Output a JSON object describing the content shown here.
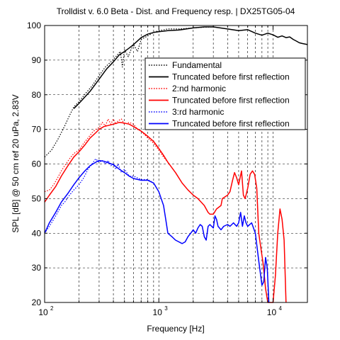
{
  "chart_data": {
    "type": "line",
    "title": "Trolldist v. 6.0 Beta - Dist. and Frequency resp. | DX25TG05-04",
    "xlabel": "Frequency [Hz]",
    "ylabel": "SPL [dB] @ 50 cm ref 20 uPa, 2.83V",
    "xscale": "log",
    "xlim": [
      100,
      20000
    ],
    "ylim": [
      20,
      100
    ],
    "xticks": [
      {
        "base": "10",
        "exp": "2"
      },
      {
        "base": "10",
        "exp": "3"
      },
      {
        "base": "10",
        "exp": "4"
      }
    ],
    "yticks": [
      "20",
      "30",
      "40",
      "50",
      "60",
      "70",
      "80",
      "90",
      "100"
    ],
    "grid": "dashed, vertical at 1-2-3...9 decades, horizontal at 10 dB",
    "legend_position": "top-right",
    "series": [
      {
        "name": "Fundamental",
        "color": "#000000",
        "style": "dotted",
        "points": [
          [
            100,
            62
          ],
          [
            115,
            64
          ],
          [
            130,
            67
          ],
          [
            150,
            71
          ],
          [
            165,
            74
          ],
          [
            180,
            76.5
          ],
          [
            200,
            78
          ],
          [
            230,
            80.5
          ],
          [
            260,
            82.5
          ],
          [
            300,
            85.5
          ],
          [
            340,
            88
          ],
          [
            380,
            89.5
          ],
          [
            420,
            91
          ],
          [
            460,
            92.5
          ],
          [
            480,
            88
          ],
          [
            500,
            93
          ],
          [
            540,
            91
          ],
          [
            570,
            93
          ],
          [
            600,
            94.5
          ],
          [
            650,
            92.5
          ],
          [
            700,
            96
          ],
          [
            800,
            97
          ],
          [
            900,
            98
          ],
          [
            1000,
            98.5
          ],
          [
            1200,
            99
          ],
          [
            1500,
            99
          ],
          [
            2000,
            99.3
          ],
          [
            2500,
            99.5
          ],
          [
            3000,
            99.6
          ]
        ]
      },
      {
        "name": "Truncated before first reflection",
        "color": "#000000",
        "style": "solid",
        "points": [
          [
            180,
            76
          ],
          [
            200,
            77.5
          ],
          [
            250,
            81
          ],
          [
            300,
            84.5
          ],
          [
            350,
            87.5
          ],
          [
            400,
            89.5
          ],
          [
            450,
            91.5
          ],
          [
            500,
            92.5
          ],
          [
            550,
            93.5
          ],
          [
            600,
            94.5
          ],
          [
            700,
            96.5
          ],
          [
            800,
            97.5
          ],
          [
            900,
            98
          ],
          [
            1000,
            98.2
          ],
          [
            1200,
            98.5
          ],
          [
            1500,
            98.7
          ],
          [
            2000,
            99.3
          ],
          [
            2500,
            99.6
          ],
          [
            3000,
            99.6
          ],
          [
            4000,
            99
          ],
          [
            5000,
            98.5
          ],
          [
            6000,
            98.8
          ],
          [
            7000,
            97.8
          ],
          [
            8000,
            97.2
          ],
          [
            9000,
            97.8
          ],
          [
            10000,
            97.3
          ],
          [
            11000,
            96.6
          ],
          [
            12000,
            97
          ],
          [
            13000,
            96.5
          ],
          [
            14000,
            96.7
          ],
          [
            15000,
            96
          ],
          [
            16000,
            95.5
          ],
          [
            17000,
            95
          ],
          [
            18000,
            94.8
          ],
          [
            20000,
            94.5
          ]
        ]
      },
      {
        "name": "2:nd harmonic",
        "color": "#ff0000",
        "style": "dotted",
        "points": [
          [
            100,
            52
          ],
          [
            110,
            52.5
          ],
          [
            120,
            54
          ],
          [
            130,
            56
          ],
          [
            140,
            58
          ],
          [
            150,
            59.5
          ],
          [
            165,
            61.5
          ],
          [
            180,
            63
          ],
          [
            200,
            64
          ],
          [
            220,
            66
          ],
          [
            240,
            67.5
          ],
          [
            260,
            69
          ],
          [
            280,
            70
          ],
          [
            300,
            70.5
          ],
          [
            320,
            72
          ],
          [
            340,
            71
          ],
          [
            360,
            73
          ],
          [
            380,
            71.5
          ],
          [
            400,
            73
          ],
          [
            420,
            71.5
          ],
          [
            440,
            72.5
          ],
          [
            470,
            73
          ],
          [
            500,
            71.5
          ],
          [
            550,
            72
          ],
          [
            600,
            71.5
          ],
          [
            650,
            70
          ],
          [
            700,
            69.5
          ],
          [
            800,
            67.5
          ],
          [
            900,
            66
          ],
          [
            1000,
            64
          ],
          [
            1100,
            62
          ],
          [
            1200,
            60.5
          ]
        ]
      },
      {
        "name": "Truncated before first reflection",
        "color": "#ff0000",
        "style": "solid",
        "points": [
          [
            100,
            49
          ],
          [
            110,
            51
          ],
          [
            125,
            53.5
          ],
          [
            140,
            56.5
          ],
          [
            160,
            59.5
          ],
          [
            180,
            62
          ],
          [
            200,
            63.5
          ],
          [
            225,
            65.5
          ],
          [
            250,
            67.5
          ],
          [
            280,
            69
          ],
          [
            300,
            70
          ],
          [
            330,
            70.8
          ],
          [
            350,
            71
          ],
          [
            400,
            71.5
          ],
          [
            450,
            72
          ],
          [
            500,
            71.8
          ],
          [
            550,
            71.5
          ],
          [
            600,
            70.8
          ],
          [
            700,
            69.5
          ],
          [
            800,
            68
          ],
          [
            900,
            66.5
          ],
          [
            1000,
            64.5
          ],
          [
            1100,
            62.5
          ],
          [
            1200,
            60.5
          ],
          [
            1400,
            57.5
          ],
          [
            1600,
            54.5
          ],
          [
            1800,
            52.5
          ],
          [
            2000,
            51
          ],
          [
            2200,
            50
          ],
          [
            2500,
            48
          ],
          [
            2700,
            46
          ],
          [
            2800,
            45.5
          ],
          [
            3000,
            45.5
          ],
          [
            3200,
            47
          ],
          [
            3500,
            48
          ],
          [
            3600,
            50
          ],
          [
            3800,
            50.5
          ],
          [
            4000,
            51
          ],
          [
            4200,
            52
          ],
          [
            4400,
            55
          ],
          [
            4600,
            57.5
          ],
          [
            4800,
            56
          ],
          [
            5000,
            54
          ],
          [
            5300,
            58
          ],
          [
            5500,
            51
          ],
          [
            5700,
            50
          ],
          [
            6000,
            53
          ],
          [
            6300,
            57
          ],
          [
            6600,
            58
          ],
          [
            6900,
            57
          ],
          [
            7200,
            53
          ],
          [
            7500,
            40
          ],
          [
            7800,
            36
          ],
          [
            8200,
            31
          ],
          [
            8600,
            24
          ],
          [
            9000,
            20
          ],
          [
            9500,
            20
          ],
          [
            10000,
            20
          ],
          [
            10500,
            28
          ],
          [
            11000,
            40
          ],
          [
            11500,
            47
          ],
          [
            12000,
            44
          ],
          [
            12500,
            38
          ],
          [
            13000,
            20
          ]
        ]
      },
      {
        "name": "3:rd harmonic",
        "color": "#0000ff",
        "style": "dotted",
        "points": [
          [
            100,
            40
          ],
          [
            110,
            42
          ],
          [
            120,
            44
          ],
          [
            130,
            46
          ],
          [
            140,
            48
          ],
          [
            150,
            49
          ],
          [
            165,
            51
          ],
          [
            180,
            52.5
          ],
          [
            200,
            54
          ],
          [
            220,
            56
          ],
          [
            240,
            58.5
          ],
          [
            260,
            60
          ],
          [
            280,
            61.5
          ],
          [
            300,
            60.5
          ],
          [
            320,
            61
          ],
          [
            340,
            60
          ],
          [
            360,
            61
          ],
          [
            380,
            59.5
          ],
          [
            400,
            60
          ],
          [
            420,
            58.5
          ],
          [
            440,
            60
          ],
          [
            470,
            57.5
          ],
          [
            500,
            58.5
          ],
          [
            550,
            56.5
          ],
          [
            600,
            56.5
          ],
          [
            700,
            55.5
          ],
          [
            800,
            55.5
          ],
          [
            900,
            54.5
          ]
        ]
      },
      {
        "name": "Truncated before first reflection",
        "color": "#0000ff",
        "style": "solid",
        "points": [
          [
            100,
            40
          ],
          [
            110,
            43
          ],
          [
            125,
            46
          ],
          [
            140,
            49
          ],
          [
            160,
            51.5
          ],
          [
            180,
            54
          ],
          [
            200,
            56
          ],
          [
            225,
            58
          ],
          [
            250,
            59.5
          ],
          [
            280,
            60.5
          ],
          [
            300,
            61
          ],
          [
            330,
            60.8
          ],
          [
            350,
            60.5
          ],
          [
            400,
            59.8
          ],
          [
            450,
            58.5
          ],
          [
            500,
            57.5
          ],
          [
            550,
            56.5
          ],
          [
            600,
            55.8
          ],
          [
            700,
            55.3
          ],
          [
            800,
            55.3
          ],
          [
            900,
            54.5
          ],
          [
            1000,
            52
          ],
          [
            1100,
            48
          ],
          [
            1150,
            44
          ],
          [
            1200,
            40
          ],
          [
            1300,
            39
          ],
          [
            1400,
            38
          ],
          [
            1500,
            37.5
          ],
          [
            1600,
            37
          ],
          [
            1700,
            37.5
          ],
          [
            1800,
            39
          ],
          [
            1900,
            40
          ],
          [
            2000,
            41
          ],
          [
            2100,
            40
          ],
          [
            2200,
            41.5
          ],
          [
            2300,
            42.5
          ],
          [
            2400,
            42
          ],
          [
            2500,
            39
          ],
          [
            2600,
            38
          ],
          [
            2700,
            42
          ],
          [
            2800,
            42.5
          ],
          [
            2900,
            42
          ],
          [
            3000,
            41.5
          ],
          [
            3100,
            45
          ],
          [
            3200,
            44
          ],
          [
            3300,
            42
          ],
          [
            3500,
            41
          ],
          [
            3700,
            42
          ],
          [
            4000,
            42.5
          ],
          [
            4200,
            42
          ],
          [
            4500,
            43
          ],
          [
            4800,
            42
          ],
          [
            5000,
            43
          ],
          [
            5200,
            46
          ],
          [
            5400,
            42
          ],
          [
            5600,
            45
          ],
          [
            5800,
            43
          ],
          [
            6000,
            42
          ],
          [
            6500,
            43
          ],
          [
            7000,
            40
          ],
          [
            7500,
            32
          ],
          [
            8000,
            25
          ],
          [
            8300,
            26
          ],
          [
            8600,
            33
          ],
          [
            8900,
            30
          ],
          [
            9200,
            20
          ]
        ]
      }
    ]
  }
}
